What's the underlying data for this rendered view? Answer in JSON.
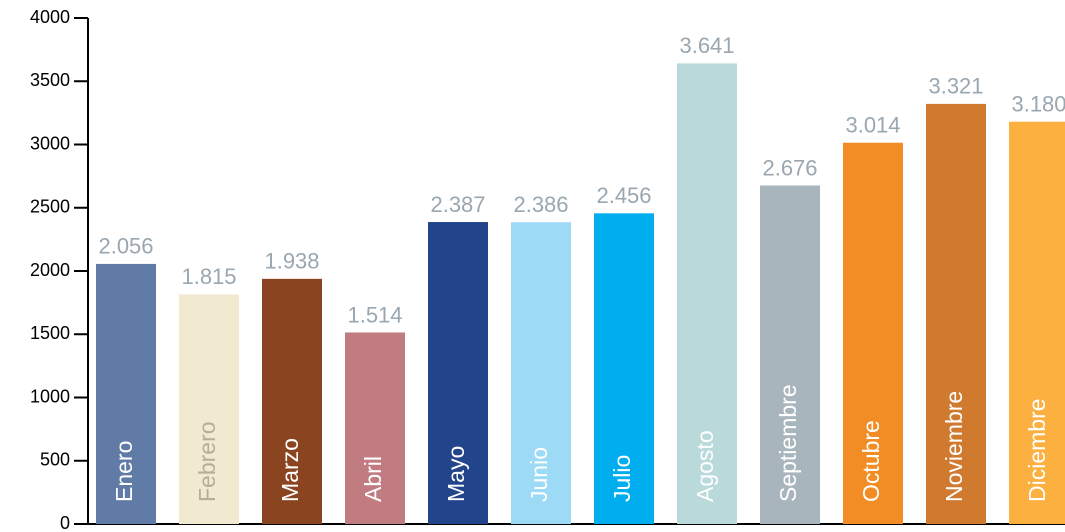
{
  "chart_data": {
    "type": "bar",
    "categories": [
      "Enero",
      "Febrero",
      "Marzo",
      "Abril",
      "Mayo",
      "Junio",
      "Julio",
      "Agosto",
      "Septiembre",
      "Octubre",
      "Noviembre",
      "Diciembre"
    ],
    "values": [
      2056,
      1815,
      1938,
      1514,
      2387,
      2386,
      2456,
      3641,
      2676,
      3014,
      3321,
      3180
    ],
    "value_labels": [
      "2.056",
      "1.815",
      "1.938",
      "1.514",
      "2.387",
      "2.386",
      "2.456",
      "3.641",
      "2.676",
      "3.014",
      "3.321",
      "3.180"
    ],
    "colors": [
      "#5f7ba6",
      "#f1ead0",
      "#8b4420",
      "#c07c80",
      "#21448a",
      "#9ddaf6",
      "#00adee",
      "#b9d9da",
      "#a8b5bd",
      "#f28c24",
      "#cf7a2f",
      "#fbb040"
    ],
    "label_colors": [
      "#ffffff",
      "#b5ae9c",
      "#ffffff",
      "#ffffff",
      "#ffffff",
      "#ffffff",
      "#ffffff",
      "#ffffff",
      "#ffffff",
      "#ffffff",
      "#ffffff",
      "#ffffff"
    ],
    "ylim": [
      0,
      4000
    ],
    "yticks": [
      0,
      500,
      1000,
      1500,
      2000,
      2500,
      3000,
      3500,
      4000
    ],
    "grid": false
  }
}
